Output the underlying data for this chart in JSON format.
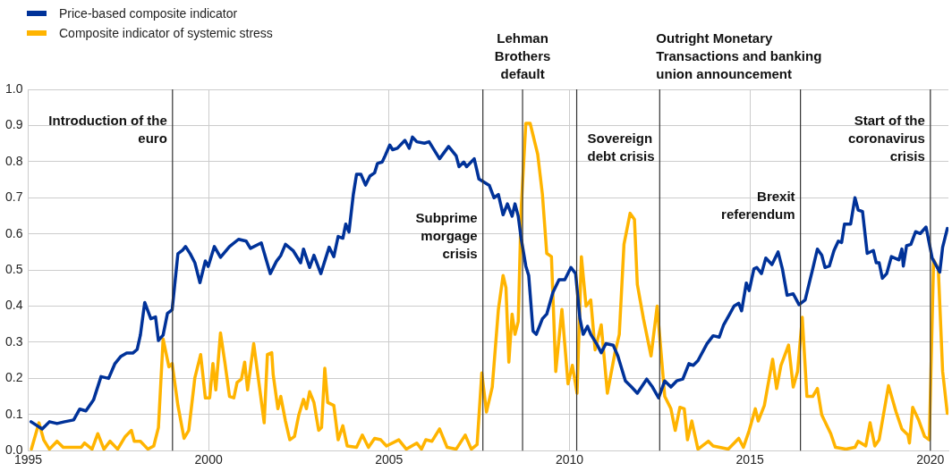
{
  "chart_data": {
    "type": "line",
    "xlim": [
      1995,
      2020.5
    ],
    "xticks": [
      1995,
      2000,
      2005,
      2010,
      2015,
      2020
    ],
    "ylim": [
      0,
      1
    ],
    "yticks": [
      {
        "value": 0,
        "label": "0.0"
      },
      {
        "value": 0.1,
        "label": "0.1"
      },
      {
        "value": 0.2,
        "label": "0.2"
      },
      {
        "value": 0.3,
        "label": "0.3"
      },
      {
        "value": 0.4,
        "label": "0.4"
      },
      {
        "value": 0.5,
        "label": "0.5"
      },
      {
        "value": 0.6,
        "label": "0.6"
      },
      {
        "value": 0.7,
        "label": "0.7"
      },
      {
        "value": 0.8,
        "label": "0.8"
      },
      {
        "value": 0.9,
        "label": "0.9"
      },
      {
        "value": 1,
        "label": "1.0"
      }
    ],
    "grid": true,
    "legend": "top left",
    "marker": "none",
    "line_style": "solid",
    "series": [
      {
        "name": "Price-based composite indicator",
        "color": "#003299",
        "x": [
          1995.08,
          1995.39,
          1995.59,
          1995.8,
          1996.01,
          1996.26,
          1996.43,
          1996.6,
          1996.81,
          1997.02,
          1997.23,
          1997.4,
          1997.56,
          1997.73,
          1997.9,
          1998.02,
          1998.11,
          1998.23,
          1998.4,
          1998.53,
          1998.61,
          1998.74,
          1998.86,
          1998.99,
          1999.15,
          1999.28,
          1999.36,
          1999.49,
          1999.62,
          1999.76,
          1999.91,
          1999.99,
          2000.16,
          2000.33,
          2000.58,
          2000.83,
          2001.04,
          2001.16,
          2001.46,
          2001.71,
          2001.88,
          2002.0,
          2002.13,
          2002.34,
          2002.55,
          2002.63,
          2002.8,
          2002.92,
          2003.11,
          2003.34,
          2003.47,
          2003.59,
          2003.72,
          2003.8,
          2003.89,
          2004.01,
          2004.1,
          2004.22,
          2004.35,
          2004.47,
          2004.6,
          2004.68,
          2004.81,
          2004.89,
          2005.02,
          2005.1,
          2005.23,
          2005.44,
          2005.56,
          2005.65,
          2005.77,
          2005.98,
          2006.11,
          2006.4,
          2006.65,
          2006.86,
          2006.94,
          2007.07,
          2007.15,
          2007.36,
          2007.49,
          2007.78,
          2007.91,
          2008.03,
          2008.16,
          2008.28,
          2008.41,
          2008.49,
          2008.58,
          2008.66,
          2008.79,
          2008.87,
          2008.99,
          2009.08,
          2009.25,
          2009.37,
          2009.54,
          2009.71,
          2009.87,
          2010.04,
          2010.17,
          2010.29,
          2010.38,
          2010.5,
          2010.59,
          2010.75,
          2010.88,
          2011.01,
          2011.21,
          2011.34,
          2011.55,
          2011.72,
          2011.88,
          2012.14,
          2012.3,
          2012.47,
          2012.64,
          2012.81,
          2012.97,
          2013.14,
          2013.31,
          2013.43,
          2013.56,
          2013.81,
          2013.98,
          2014.15,
          2014.27,
          2014.44,
          2014.56,
          2014.69,
          2014.77,
          2014.9,
          2014.98,
          2015.11,
          2015.19,
          2015.32,
          2015.44,
          2015.61,
          2015.78,
          2015.9,
          2016.03,
          2016.2,
          2016.36,
          2016.53,
          2016.74,
          2016.87,
          2016.99,
          2017.08,
          2017.2,
          2017.33,
          2017.45,
          2017.54,
          2017.62,
          2017.79,
          2017.91,
          2018.0,
          2018.12,
          2018.25,
          2018.42,
          2018.5,
          2018.58,
          2018.67,
          2018.79,
          2018.92,
          2019.13,
          2019.21,
          2019.25,
          2019.34,
          2019.46,
          2019.59,
          2019.72,
          2019.88,
          2020.05,
          2020.26,
          2020.34,
          2020.47
        ],
        "values": [
          0.08,
          0.06,
          0.08,
          0.075,
          0.08,
          0.085,
          0.115,
          0.11,
          0.14,
          0.205,
          0.2,
          0.24,
          0.26,
          0.27,
          0.27,
          0.28,
          0.32,
          0.41,
          0.365,
          0.37,
          0.305,
          0.32,
          0.38,
          0.39,
          0.545,
          0.555,
          0.565,
          0.545,
          0.52,
          0.465,
          0.525,
          0.51,
          0.565,
          0.535,
          0.565,
          0.585,
          0.58,
          0.56,
          0.575,
          0.49,
          0.524,
          0.54,
          0.571,
          0.554,
          0.52,
          0.558,
          0.507,
          0.541,
          0.49,
          0.563,
          0.537,
          0.593,
          0.588,
          0.627,
          0.605,
          0.709,
          0.765,
          0.765,
          0.735,
          0.76,
          0.769,
          0.795,
          0.799,
          0.816,
          0.846,
          0.833,
          0.837,
          0.859,
          0.837,
          0.868,
          0.855,
          0.851,
          0.855,
          0.808,
          0.842,
          0.816,
          0.786,
          0.799,
          0.786,
          0.808,
          0.752,
          0.734,
          0.7,
          0.709,
          0.653,
          0.683,
          0.649,
          0.683,
          0.649,
          0.588,
          0.511,
          0.485,
          0.331,
          0.322,
          0.365,
          0.378,
          0.438,
          0.473,
          0.473,
          0.507,
          0.49,
          0.365,
          0.322,
          0.344,
          0.322,
          0.296,
          0.271,
          0.296,
          0.292,
          0.262,
          0.193,
          0.176,
          0.159,
          0.198,
          0.176,
          0.146,
          0.193,
          0.176,
          0.193,
          0.198,
          0.241,
          0.236,
          0.249,
          0.296,
          0.318,
          0.314,
          0.348,
          0.378,
          0.4,
          0.408,
          0.387,
          0.464,
          0.443,
          0.503,
          0.507,
          0.49,
          0.533,
          0.515,
          0.55,
          0.503,
          0.43,
          0.434,
          0.404,
          0.417,
          0.503,
          0.558,
          0.541,
          0.507,
          0.511,
          0.554,
          0.58,
          0.576,
          0.627,
          0.627,
          0.7,
          0.666,
          0.662,
          0.546,
          0.554,
          0.52,
          0.52,
          0.477,
          0.49,
          0.537,
          0.528,
          0.558,
          0.511,
          0.567,
          0.571,
          0.606,
          0.601,
          0.619,
          0.533,
          0.494,
          0.563,
          0.615
        ]
      },
      {
        "name": "Composite indicator of systemic stress",
        "color": "#ffb400",
        "x": [
          1995.09,
          1995.3,
          1995.43,
          1995.59,
          1995.8,
          1995.97,
          1996.47,
          1996.56,
          1996.77,
          1996.93,
          1997.1,
          1997.27,
          1997.48,
          1997.69,
          1997.86,
          1997.94,
          1998.11,
          1998.32,
          1998.48,
          1998.61,
          1998.74,
          1998.9,
          1998.99,
          1999.15,
          1999.32,
          1999.45,
          1999.62,
          1999.78,
          1999.91,
          2000.03,
          2000.12,
          2000.2,
          2000.33,
          2000.45,
          2000.58,
          2000.7,
          2000.79,
          2000.91,
          2001.0,
          2001.08,
          2001.25,
          2001.41,
          2001.54,
          2001.63,
          2001.75,
          2001.79,
          2001.92,
          2002.0,
          2002.13,
          2002.25,
          2002.38,
          2002.5,
          2002.63,
          2002.71,
          2002.8,
          2002.92,
          2003.05,
          2003.13,
          2003.22,
          2003.3,
          2003.47,
          2003.59,
          2003.72,
          2003.84,
          2004.1,
          2004.26,
          2004.43,
          2004.6,
          2004.77,
          2004.93,
          2005.27,
          2005.48,
          2005.77,
          2005.9,
          2006.02,
          2006.19,
          2006.4,
          2006.61,
          2006.86,
          2007.11,
          2007.28,
          2007.44,
          2007.57,
          2007.7,
          2007.86,
          2008.03,
          2008.16,
          2008.24,
          2008.32,
          2008.41,
          2008.49,
          2008.58,
          2008.66,
          2008.79,
          2008.91,
          2009.12,
          2009.25,
          2009.37,
          2009.5,
          2009.62,
          2009.79,
          2009.96,
          2010.08,
          2010.21,
          2010.33,
          2010.46,
          2010.59,
          2010.71,
          2010.88,
          2011.05,
          2011.26,
          2011.38,
          2011.51,
          2011.68,
          2011.8,
          2011.88,
          2012.05,
          2012.26,
          2012.43,
          2012.64,
          2012.81,
          2012.93,
          2013.06,
          2013.18,
          2013.27,
          2013.39,
          2013.56,
          2013.85,
          2013.98,
          2014.4,
          2014.69,
          2014.82,
          2014.98,
          2015.15,
          2015.23,
          2015.4,
          2015.49,
          2015.63,
          2015.74,
          2015.86,
          2016.07,
          2016.2,
          2016.32,
          2016.45,
          2016.58,
          2016.74,
          2016.87,
          2016.99,
          2017.24,
          2017.37,
          2017.66,
          2017.91,
          2018.0,
          2018.21,
          2018.33,
          2018.46,
          2018.58,
          2018.84,
          2019.05,
          2019.21,
          2019.38,
          2019.42,
          2019.51,
          2019.67,
          2019.84,
          2019.97,
          2020.09,
          2020.22,
          2020.34,
          2020.47
        ],
        "values": [
          0.004,
          0.077,
          0.03,
          0.004,
          0.026,
          0.009,
          0.009,
          0.021,
          0.004,
          0.047,
          0.004,
          0.026,
          0.004,
          0.039,
          0.056,
          0.026,
          0.026,
          0.004,
          0.013,
          0.064,
          0.309,
          0.232,
          0.241,
          0.125,
          0.034,
          0.056,
          0.202,
          0.266,
          0.146,
          0.146,
          0.241,
          0.168,
          0.326,
          0.245,
          0.15,
          0.146,
          0.189,
          0.198,
          0.245,
          0.168,
          0.296,
          0.176,
          0.077,
          0.266,
          0.271,
          0.21,
          0.116,
          0.15,
          0.082,
          0.03,
          0.039,
          0.099,
          0.142,
          0.116,
          0.163,
          0.133,
          0.056,
          0.064,
          0.228,
          0.133,
          0.125,
          0.03,
          0.069,
          0.013,
          0.009,
          0.043,
          0.009,
          0.034,
          0.03,
          0.013,
          0.03,
          0.004,
          0.021,
          0.004,
          0.03,
          0.026,
          0.06,
          0.009,
          0.004,
          0.043,
          0.004,
          0.017,
          0.215,
          0.107,
          0.176,
          0.391,
          0.485,
          0.451,
          0.245,
          0.378,
          0.322,
          0.357,
          0.666,
          0.906,
          0.906,
          0.82,
          0.709,
          0.546,
          0.537,
          0.219,
          0.391,
          0.185,
          0.236,
          0.159,
          0.537,
          0.4,
          0.417,
          0.279,
          0.348,
          0.159,
          0.271,
          0.322,
          0.571,
          0.657,
          0.64,
          0.46,
          0.365,
          0.262,
          0.4,
          0.15,
          0.116,
          0.056,
          0.12,
          0.116,
          0.03,
          0.082,
          0.004,
          0.026,
          0.013,
          0.004,
          0.034,
          0.009,
          0.056,
          0.116,
          0.082,
          0.125,
          0.176,
          0.253,
          0.172,
          0.236,
          0.292,
          0.176,
          0.219,
          0.369,
          0.15,
          0.15,
          0.172,
          0.099,
          0.047,
          0.009,
          0.004,
          0.009,
          0.026,
          0.013,
          0.077,
          0.013,
          0.03,
          0.18,
          0.107,
          0.06,
          0.043,
          0.021,
          0.12,
          0.086,
          0.039,
          0.03,
          0.528,
          0.503,
          0.219,
          0.103
        ]
      }
    ],
    "ref_lines": [
      {
        "axis": "x",
        "value": 1999.0,
        "label": "Introduction of the euro",
        "color": "#333333"
      },
      {
        "axis": "x",
        "value": 2007.6,
        "label": "Subprime morgage crisis",
        "color": "#333333"
      },
      {
        "axis": "x",
        "value": 2008.7,
        "label": "Lehman Brothers default",
        "color": "#333333"
      },
      {
        "axis": "x",
        "value": 2010.2,
        "label": "Sovereign debt crisis",
        "color": "#333333"
      },
      {
        "axis": "x",
        "value": 2012.5,
        "label": "Outright Monetary Transactions and banking union announcement",
        "color": "#333333"
      },
      {
        "axis": "x",
        "value": 2016.4,
        "label": "Brexit referendum",
        "color": "#333333"
      },
      {
        "axis": "x",
        "value": 2020.0,
        "label": "Start of the coronavirus crisis",
        "color": "#333333"
      }
    ]
  }
}
